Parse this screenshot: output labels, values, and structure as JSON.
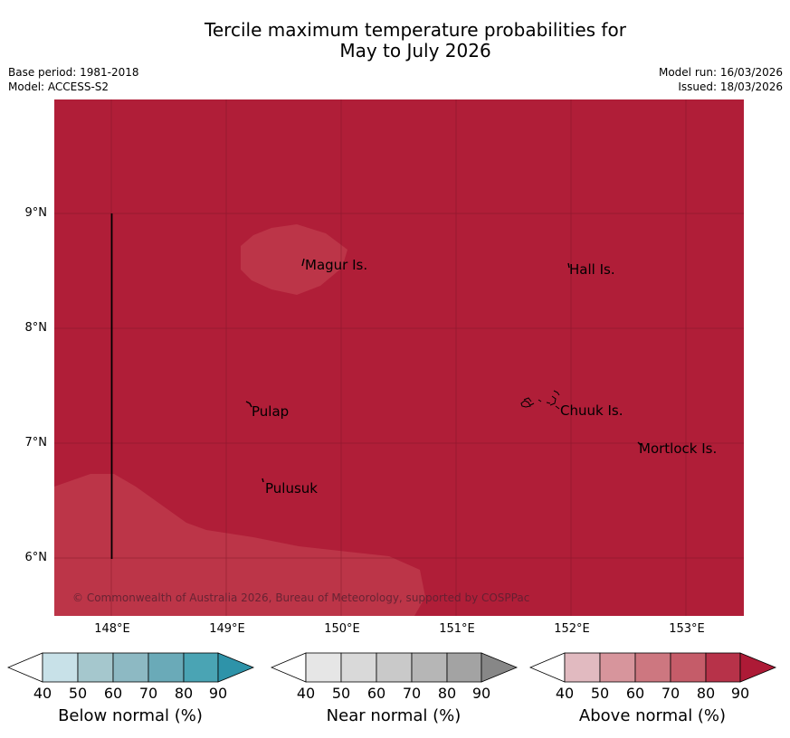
{
  "title": {
    "line1": "Tercile maximum temperature probabilities for",
    "line2": "May to July 2026"
  },
  "meta": {
    "base_period": "Base period: 1981-2018",
    "model": "Model: ACCESS-S2",
    "model_run": "Model run: 16/03/2026",
    "issued": "Issued: 18/03/2026"
  },
  "map": {
    "lat_ticks": [
      "9°N",
      "8°N",
      "7°N",
      "6°N"
    ],
    "lon_ticks": [
      "148°E",
      "149°E",
      "150°E",
      "151°E",
      "152°E",
      "153°E"
    ],
    "places": [
      "Magur Is.",
      "Hall Is.",
      "Pulap",
      "Chuuk Is.",
      "Mortlock Is.",
      "Pulusuk"
    ],
    "copyright": "© Commonwealth of Australia 2026, Bureau of Meteorology, supported by COSPPac",
    "background_color": "#b01e38",
    "lighter_region_color": "#bc3548"
  },
  "colorbars": [
    {
      "title": "Below normal (%)",
      "ticks": [
        "40",
        "50",
        "60",
        "70",
        "80",
        "90"
      ],
      "colors": [
        "#ffffff",
        "#c8e1e8",
        "#a5c7cd",
        "#8db9c3",
        "#6aaab8",
        "#4aa4b4",
        "#2e93a9"
      ]
    },
    {
      "title": "Near normal (%)",
      "ticks": [
        "40",
        "50",
        "60",
        "70",
        "80",
        "90"
      ],
      "colors": [
        "#ffffff",
        "#e6e6e6",
        "#d9d9d9",
        "#c9c9c9",
        "#b6b6b6",
        "#a3a3a3",
        "#878787"
      ]
    },
    {
      "title": "Above normal (%)",
      "ticks": [
        "40",
        "50",
        "60",
        "70",
        "80",
        "90"
      ],
      "colors": [
        "#ffffff",
        "#e1bac0",
        "#d7959c",
        "#cd7780",
        "#c55c69",
        "#b73249",
        "#ad1a36"
      ]
    }
  ]
}
